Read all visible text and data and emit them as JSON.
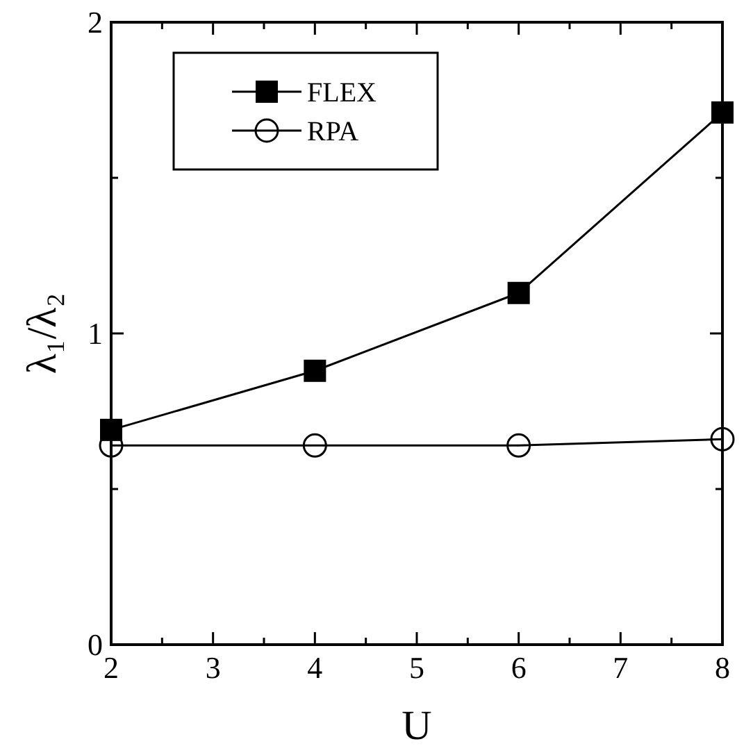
{
  "chart_data": {
    "type": "line",
    "xlabel": "U",
    "ylabel": "λ₁/λ₂",
    "x": [
      2,
      4,
      6,
      8
    ],
    "series": [
      {
        "name": "FLEX",
        "color": "#000000",
        "marker": "square",
        "values": [
          0.69,
          0.88,
          1.13,
          1.71
        ]
      },
      {
        "name": "RPA",
        "color": "#000000",
        "marker": "circle",
        "values": [
          0.64,
          0.64,
          0.64,
          0.66
        ]
      }
    ],
    "xlim": [
      2,
      8
    ],
    "xticks": [
      2,
      {
        "value": 2.5,
        "label": null
      },
      3,
      {
        "value": 3.5,
        "label": null
      },
      4,
      {
        "value": 4.5,
        "label": null
      },
      5,
      {
        "value": 5.5,
        "label": null
      },
      6,
      {
        "value": 6.5,
        "label": null
      },
      7,
      {
        "value": 7.5,
        "label": null
      },
      8
    ],
    "ylim": [
      0,
      2
    ],
    "yticks": [
      0,
      {
        "value": 0.5,
        "label": null
      },
      1,
      {
        "value": 1.5,
        "label": null
      },
      2
    ],
    "grid": false,
    "legend": "top left",
    "line_style": "solid"
  }
}
